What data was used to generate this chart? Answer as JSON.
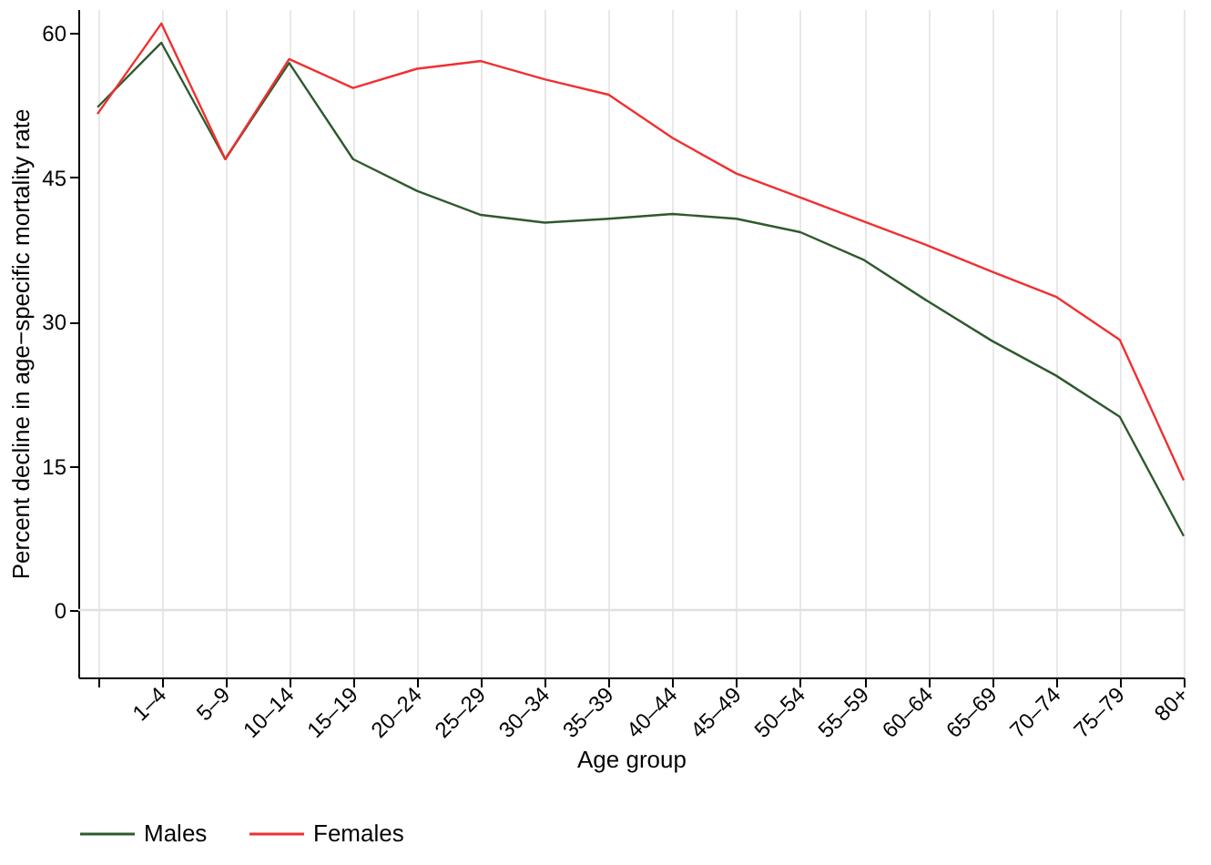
{
  "chart_data": {
    "type": "line",
    "xlabel": "Age group",
    "ylabel": "Percent decline in age−specific mortality rate",
    "categories": [
      null,
      "1–4",
      "5–9",
      "10–14",
      "15–19",
      "20–24",
      "25–29",
      "30–34",
      "35–39",
      "40–44",
      "45–49",
      "50–54",
      "55–59",
      "60–64",
      "65–69",
      "70–74",
      "75–79",
      "80+"
    ],
    "series": [
      {
        "name": "Males",
        "color": "#2e5a2e",
        "values": [
          52.3,
          59,
          46.9,
          56.9,
          46.9,
          43.6,
          41.1,
          40.3,
          40.7,
          41.2,
          40.7,
          39.3,
          36.4,
          32.1,
          28.0,
          24.4,
          20.1,
          7.7
        ]
      },
      {
        "name": "Females",
        "color": "#f03030",
        "values": [
          51.6,
          61,
          46.9,
          57.3,
          54.3,
          56.3,
          57.1,
          55.2,
          53.6,
          49.1,
          45.4,
          42.9,
          40.4,
          37.9,
          35.2,
          32.6,
          28.1,
          13.5
        ]
      }
    ],
    "ylim": [
      -7,
      62.5
    ],
    "yticks": [
      0,
      15,
      30,
      45,
      60
    ],
    "grid": "x",
    "legend": "bottom",
    "marker": "none",
    "line_style": "solid",
    "ref_lines": [
      {
        "axis": "y",
        "value": 0,
        "color": "#e0e0e0"
      }
    ]
  }
}
